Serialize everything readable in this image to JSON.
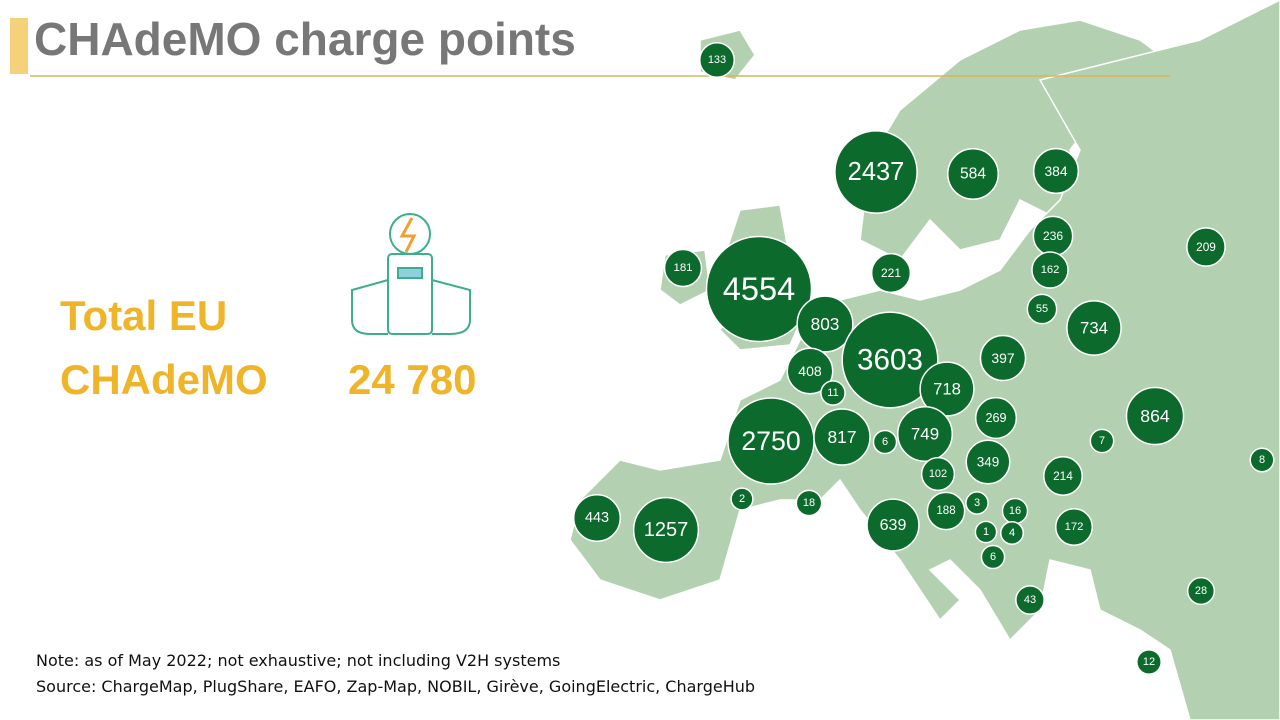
{
  "header": {
    "title": "CHAdeMO charge points"
  },
  "total": {
    "label_line1": "Total EU",
    "label_line2": "CHAdeMO",
    "value": "24 780"
  },
  "map": {
    "bubbles": [
      133,
      2437,
      584,
      384,
      236,
      209,
      181,
      4554,
      221,
      162,
      55,
      734,
      803,
      3603,
      397,
      408,
      11,
      718,
      269,
      864,
      2750,
      817,
      6,
      749,
      7,
      8,
      102,
      349,
      214,
      2,
      18,
      188,
      3,
      16,
      443,
      1257,
      639,
      1,
      4,
      172,
      6,
      43,
      28,
      12
    ]
  },
  "footer": {
    "note": "Note: as of  May 2022; not exhaustive; not including V2H systems",
    "source": "Source: ChargeMap, PlugShare, EAFO, Zap-Map, NOBIL, Girève, GoingElectric, ChargeHub"
  }
}
